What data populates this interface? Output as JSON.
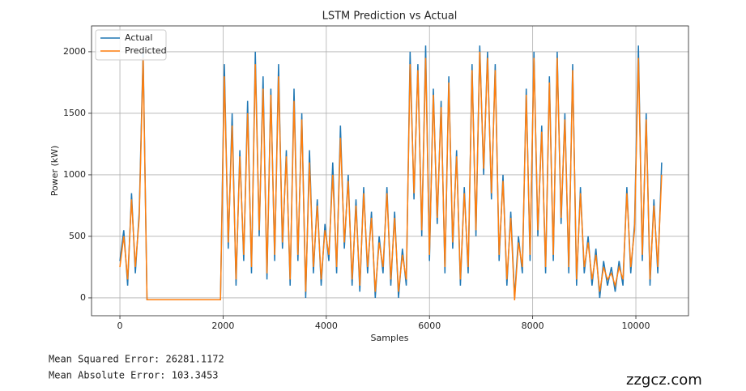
{
  "chart_data": {
    "type": "line",
    "title": "LSTM Prediction vs Actual",
    "x_label": "Samples",
    "y_label": "Power (kW)",
    "x": [
      0,
      75,
      150,
      225,
      300,
      375,
      450,
      525,
      600,
      675,
      750,
      825,
      900,
      975,
      1050,
      1125,
      1200,
      1275,
      1350,
      1425,
      1500,
      1575,
      1650,
      1725,
      1800,
      1875,
      1950,
      2025,
      2100,
      2175,
      2250,
      2325,
      2400,
      2475,
      2550,
      2625,
      2700,
      2775,
      2850,
      2925,
      3000,
      3075,
      3150,
      3225,
      3300,
      3375,
      3450,
      3525,
      3600,
      3675,
      3750,
      3825,
      3900,
      3975,
      4050,
      4125,
      4200,
      4275,
      4350,
      4425,
      4500,
      4575,
      4650,
      4725,
      4800,
      4875,
      4950,
      5025,
      5100,
      5175,
      5250,
      5325,
      5400,
      5475,
      5550,
      5625,
      5700,
      5775,
      5850,
      5925,
      6000,
      6075,
      6150,
      6225,
      6300,
      6375,
      6450,
      6525,
      6600,
      6675,
      6750,
      6825,
      6900,
      6975,
      7050,
      7125,
      7200,
      7275,
      7350,
      7425,
      7500,
      7575,
      7650,
      7725,
      7800,
      7875,
      7950,
      8025,
      8100,
      8175,
      8250,
      8325,
      8400,
      8475,
      8550,
      8625,
      8700,
      8775,
      8850,
      8925,
      9000,
      9075,
      9150,
      9225,
      9300,
      9375,
      9450,
      9525,
      9600,
      9675,
      9750,
      9825,
      9900,
      9975,
      10050,
      10125,
      10200,
      10275,
      10350,
      10425,
      10500
    ],
    "series": [
      {
        "name": "Actual",
        "color": "#1f77b4",
        "values": [
          300,
          550,
          100,
          850,
          200,
          700,
          2000,
          -15,
          -15,
          -15,
          -15,
          -15,
          -15,
          -15,
          -15,
          -15,
          -15,
          -15,
          -15,
          -15,
          -15,
          -15,
          -15,
          -15,
          -15,
          -15,
          -15,
          1900,
          400,
          1500,
          100,
          1200,
          300,
          1600,
          200,
          2000,
          500,
          1800,
          150,
          1700,
          300,
          1900,
          400,
          1200,
          100,
          1700,
          300,
          1500,
          0,
          1200,
          200,
          800,
          100,
          600,
          300,
          1100,
          200,
          1400,
          400,
          1000,
          100,
          800,
          50,
          900,
          200,
          700,
          0,
          500,
          200,
          900,
          100,
          700,
          0,
          400,
          100,
          2000,
          800,
          1900,
          500,
          2050,
          300,
          1700,
          600,
          1600,
          200,
          1800,
          400,
          1200,
          100,
          900,
          200,
          1900,
          500,
          2050,
          1000,
          2000,
          800,
          1900,
          300,
          1000,
          100,
          700,
          0,
          500,
          200,
          1700,
          300,
          2000,
          500,
          1400,
          200,
          1800,
          300,
          2000,
          600,
          1500,
          200,
          1900,
          100,
          900,
          200,
          500,
          100,
          400,
          0,
          300,
          100,
          250,
          50,
          300,
          100,
          900,
          200,
          600,
          2050,
          300,
          1500,
          100,
          800,
          200,
          1100
        ]
      },
      {
        "name": "Predicted",
        "color": "#ff7f0e",
        "values": [
          250,
          500,
          150,
          800,
          250,
          650,
          1950,
          -15,
          -15,
          -15,
          -15,
          -15,
          -15,
          -15,
          -15,
          -15,
          -15,
          -15,
          -15,
          -15,
          -15,
          -15,
          -15,
          -15,
          -15,
          -15,
          -15,
          1800,
          450,
          1400,
          150,
          1150,
          350,
          1500,
          250,
          1900,
          550,
          1700,
          200,
          1650,
          350,
          1800,
          450,
          1150,
          150,
          1600,
          350,
          1450,
          50,
          1100,
          250,
          750,
          150,
          550,
          350,
          1000,
          250,
          1300,
          450,
          950,
          150,
          750,
          100,
          850,
          250,
          650,
          50,
          450,
          250,
          850,
          150,
          650,
          50,
          350,
          150,
          1900,
          850,
          1850,
          550,
          1950,
          350,
          1650,
          650,
          1550,
          250,
          1750,
          450,
          1150,
          150,
          850,
          250,
          1850,
          550,
          2000,
          1050,
          1950,
          850,
          1850,
          350,
          950,
          150,
          650,
          -20,
          450,
          250,
          1650,
          350,
          1950,
          550,
          1350,
          250,
          1750,
          350,
          1950,
          650,
          1450,
          250,
          1850,
          150,
          850,
          250,
          450,
          150,
          350,
          50,
          250,
          150,
          200,
          100,
          250,
          150,
          850,
          250,
          550,
          1950,
          350,
          1450,
          150,
          750,
          250,
          1000
        ]
      }
    ],
    "xlim": [
      -550,
      11020
    ],
    "xticks": [
      0,
      2000,
      4000,
      6000,
      8000,
      10000
    ],
    "ylim": [
      -145,
      2210
    ],
    "yticks": [
      0,
      500,
      1000,
      1500,
      2000
    ],
    "grid": true,
    "legend": "upper left"
  },
  "output_lines": [
    "Mean Squared Error: 26281.1172",
    "Mean Absolute Error: 103.3453"
  ],
  "watermark": "zzgcz.com"
}
